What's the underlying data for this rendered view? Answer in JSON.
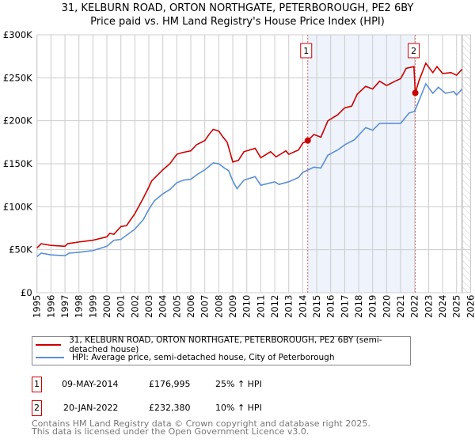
{
  "chart_data": {
    "type": "line",
    "title": "31, KELBURN ROAD, ORTON NORTHGATE, PETERBOROUGH, PE2 6BY",
    "subtitle": "Price paid vs. HM Land Registry's House Price Index (HPI)",
    "xlim": [
      1995,
      2026
    ],
    "ylim": [
      0,
      300000
    ],
    "y_ticks": [
      0,
      50000,
      100000,
      150000,
      200000,
      250000,
      300000
    ],
    "y_tick_labels": [
      "£0",
      "£50K",
      "£100K",
      "£150K",
      "£200K",
      "£250K",
      "£300K"
    ],
    "x_ticks": [
      "1995",
      "1996",
      "1997",
      "1998",
      "1999",
      "2000",
      "2001",
      "2002",
      "2003",
      "2004",
      "2005",
      "2006",
      "2007",
      "2008",
      "2009",
      "2010",
      "2011",
      "2012",
      "2013",
      "2014",
      "2015",
      "2016",
      "2017",
      "2018",
      "2019",
      "2020",
      "2021",
      "2022",
      "2023",
      "2024",
      "2025",
      "2026"
    ],
    "grid": true,
    "shaded_range": [
      2014.36,
      2022.05
    ],
    "hatched_from": 2025.4,
    "series": [
      {
        "name": "31, KELBURN ROAD, ORTON NORTHGATE, PETERBOROUGH, PE2 6BY (semi-detached house)",
        "color": "#cc0000",
        "points": [
          [
            1995,
            52000
          ],
          [
            1995.3,
            57000
          ],
          [
            1996,
            55000
          ],
          [
            1997,
            54000
          ],
          [
            1997.2,
            57000
          ],
          [
            1998,
            59000
          ],
          [
            1999,
            61000
          ],
          [
            2000,
            65000
          ],
          [
            2000.2,
            69000
          ],
          [
            2000.5,
            68000
          ],
          [
            2001,
            77000
          ],
          [
            2001.4,
            78000
          ],
          [
            2002,
            92000
          ],
          [
            2002.6,
            110000
          ],
          [
            2003,
            123000
          ],
          [
            2003.2,
            130000
          ],
          [
            2004,
            143000
          ],
          [
            2004.5,
            150000
          ],
          [
            2005,
            161000
          ],
          [
            2005.4,
            163000
          ],
          [
            2006,
            165000
          ],
          [
            2006.4,
            172000
          ],
          [
            2007,
            177000
          ],
          [
            2007.3,
            184000
          ],
          [
            2007.6,
            190000
          ],
          [
            2008,
            188000
          ],
          [
            2008.3,
            181000
          ],
          [
            2008.6,
            175000
          ],
          [
            2009,
            152000
          ],
          [
            2009.4,
            154000
          ],
          [
            2009.8,
            164000
          ],
          [
            2010.6,
            168000
          ],
          [
            2011,
            157000
          ],
          [
            2011.7,
            164000
          ],
          [
            2012.1,
            158000
          ],
          [
            2012.8,
            165000
          ],
          [
            2013,
            161000
          ],
          [
            2013.7,
            166000
          ],
          [
            2014,
            174000
          ],
          [
            2014.36,
            176995
          ],
          [
            2014.8,
            184000
          ],
          [
            2015.3,
            181000
          ],
          [
            2015.8,
            200000
          ],
          [
            2016.5,
            207000
          ],
          [
            2017,
            215000
          ],
          [
            2017.5,
            217000
          ],
          [
            2017.9,
            231000
          ],
          [
            2018.5,
            240000
          ],
          [
            2019,
            237000
          ],
          [
            2019.5,
            246000
          ],
          [
            2020,
            241000
          ],
          [
            2020.6,
            246000
          ],
          [
            2021,
            249000
          ],
          [
            2021.4,
            261000
          ],
          [
            2021.95,
            263000
          ],
          [
            2022.05,
            232380
          ],
          [
            2022.3,
            246000
          ],
          [
            2022.8,
            267000
          ],
          [
            2023.3,
            256000
          ],
          [
            2023.6,
            263000
          ],
          [
            2024,
            255000
          ],
          [
            2024.6,
            256000
          ],
          [
            2025,
            253000
          ],
          [
            2025.4,
            260000
          ]
        ]
      },
      {
        "name": "HPI: Average price, semi-detached house, City of Peterborough",
        "color": "#5b8fd4",
        "points": [
          [
            1995,
            42000
          ],
          [
            1995.3,
            46000
          ],
          [
            1996,
            44000
          ],
          [
            1997,
            43000
          ],
          [
            1997.3,
            46000
          ],
          [
            1998,
            47000
          ],
          [
            1999,
            49000
          ],
          [
            2000,
            54000
          ],
          [
            2000.5,
            61000
          ],
          [
            2001,
            62000
          ],
          [
            2002,
            74000
          ],
          [
            2002.6,
            85000
          ],
          [
            2003,
            97000
          ],
          [
            2003.4,
            107000
          ],
          [
            2004,
            115000
          ],
          [
            2004.5,
            120000
          ],
          [
            2005,
            128000
          ],
          [
            2005.5,
            131000
          ],
          [
            2006,
            132000
          ],
          [
            2006.5,
            138000
          ],
          [
            2007,
            143000
          ],
          [
            2007.6,
            151000
          ],
          [
            2008,
            150000
          ],
          [
            2008.4,
            145000
          ],
          [
            2008.7,
            142000
          ],
          [
            2009,
            130000
          ],
          [
            2009.3,
            121000
          ],
          [
            2009.8,
            131000
          ],
          [
            2010.6,
            135000
          ],
          [
            2011,
            125000
          ],
          [
            2012,
            129000
          ],
          [
            2012.3,
            126000
          ],
          [
            2013,
            129000
          ],
          [
            2013.7,
            134000
          ],
          [
            2014,
            140000
          ],
          [
            2014.8,
            146000
          ],
          [
            2015.3,
            145000
          ],
          [
            2015.8,
            160000
          ],
          [
            2016.5,
            166000
          ],
          [
            2017,
            172000
          ],
          [
            2017.7,
            178000
          ],
          [
            2018.5,
            192000
          ],
          [
            2019,
            189000
          ],
          [
            2019.5,
            197000
          ],
          [
            2020.5,
            197000
          ],
          [
            2021,
            197000
          ],
          [
            2021.6,
            209000
          ],
          [
            2022,
            211000
          ],
          [
            2022.3,
            223000
          ],
          [
            2022.8,
            243000
          ],
          [
            2023.3,
            232000
          ],
          [
            2023.7,
            239000
          ],
          [
            2024.2,
            232000
          ],
          [
            2024.8,
            234000
          ],
          [
            2025,
            230000
          ],
          [
            2025.4,
            237000
          ]
        ]
      }
    ],
    "annotations": [
      {
        "label": "1",
        "x": 2014.36,
        "y": 176995
      },
      {
        "label": "2",
        "x": 2022.05,
        "y": 232380
      }
    ]
  },
  "legend": {
    "property": "31, KELBURN ROAD, ORTON NORTHGATE, PETERBOROUGH, PE2 6BY (semi-detached house)",
    "hpi": "HPI: Average price, semi-detached house, City of Peterborough"
  },
  "sales": [
    {
      "num": "1",
      "date": "09-MAY-2014",
      "price": "£176,995",
      "hpi": "25% ↑ HPI"
    },
    {
      "num": "2",
      "date": "20-JAN-2022",
      "price": "£232,380",
      "hpi": "10% ↑ HPI"
    }
  ],
  "footer": {
    "line1": "Contains HM Land Registry data © Crown copyright and database right 2025.",
    "line2": "This data is licensed under the Open Government Licence v3.0."
  }
}
